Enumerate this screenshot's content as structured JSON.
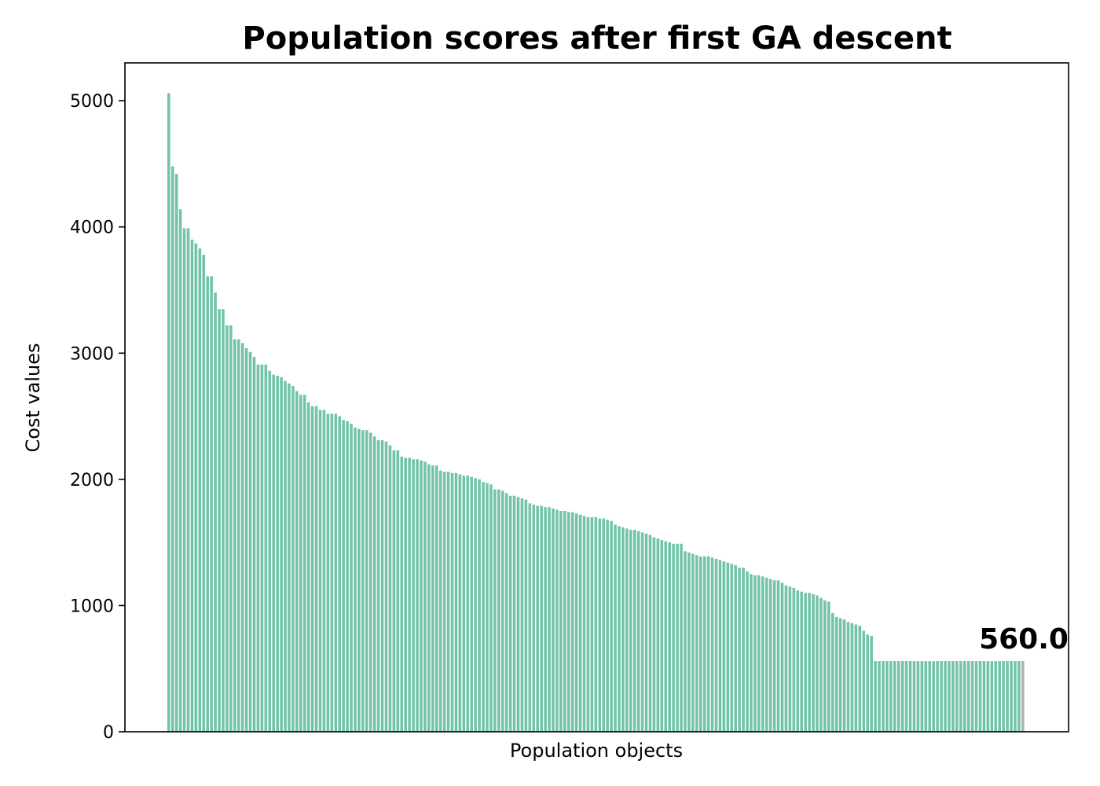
{
  "chart_data": {
    "type": "bar",
    "title": "Population scores after first GA descent",
    "xlabel": "Population objects",
    "ylabel": "Cost values",
    "ylim": [
      0,
      5300
    ],
    "yticks": [
      0,
      1000,
      2000,
      3000,
      4000,
      5000
    ],
    "ytick_labels": [
      "0",
      "1000",
      "2000",
      "3000",
      "4000",
      "5000"
    ],
    "grid": false,
    "bar_color": "#72c3a9",
    "highlight_color": "#b0b0b0",
    "annotation": "560.0",
    "values": [
      5060,
      4480,
      4420,
      4140,
      3990,
      3990,
      3900,
      3870,
      3830,
      3780,
      3610,
      3610,
      3480,
      3350,
      3350,
      3220,
      3220,
      3110,
      3110,
      3080,
      3040,
      3010,
      2970,
      2910,
      2910,
      2910,
      2860,
      2830,
      2820,
      2810,
      2780,
      2760,
      2740,
      2700,
      2670,
      2670,
      2610,
      2580,
      2580,
      2550,
      2550,
      2520,
      2520,
      2520,
      2500,
      2470,
      2460,
      2440,
      2410,
      2400,
      2390,
      2390,
      2370,
      2340,
      2310,
      2310,
      2300,
      2270,
      2230,
      2230,
      2180,
      2170,
      2170,
      2160,
      2160,
      2150,
      2140,
      2120,
      2110,
      2110,
      2070,
      2060,
      2060,
      2050,
      2050,
      2040,
      2030,
      2030,
      2020,
      2010,
      2000,
      1980,
      1970,
      1960,
      1920,
      1920,
      1910,
      1890,
      1870,
      1870,
      1860,
      1850,
      1840,
      1810,
      1800,
      1790,
      1790,
      1780,
      1780,
      1770,
      1760,
      1750,
      1750,
      1740,
      1740,
      1730,
      1720,
      1710,
      1700,
      1700,
      1700,
      1690,
      1690,
      1680,
      1670,
      1640,
      1630,
      1620,
      1610,
      1600,
      1600,
      1590,
      1580,
      1570,
      1560,
      1540,
      1530,
      1520,
      1510,
      1500,
      1490,
      1490,
      1490,
      1430,
      1420,
      1410,
      1400,
      1390,
      1390,
      1390,
      1380,
      1370,
      1360,
      1350,
      1340,
      1330,
      1320,
      1300,
      1300,
      1270,
      1250,
      1240,
      1240,
      1230,
      1220,
      1210,
      1200,
      1200,
      1180,
      1160,
      1150,
      1140,
      1120,
      1110,
      1100,
      1100,
      1090,
      1080,
      1060,
      1040,
      1030,
      940,
      910,
      900,
      890,
      870,
      860,
      850,
      840,
      800,
      770,
      760,
      560,
      560,
      560,
      560,
      560,
      560,
      560,
      560,
      560,
      560,
      560,
      560,
      560,
      560,
      560,
      560,
      560,
      560,
      560,
      560,
      560,
      560,
      560,
      560,
      560,
      560,
      560,
      560,
      560,
      560,
      560,
      560,
      560,
      560,
      560,
      560,
      560,
      560,
      560
    ]
  }
}
